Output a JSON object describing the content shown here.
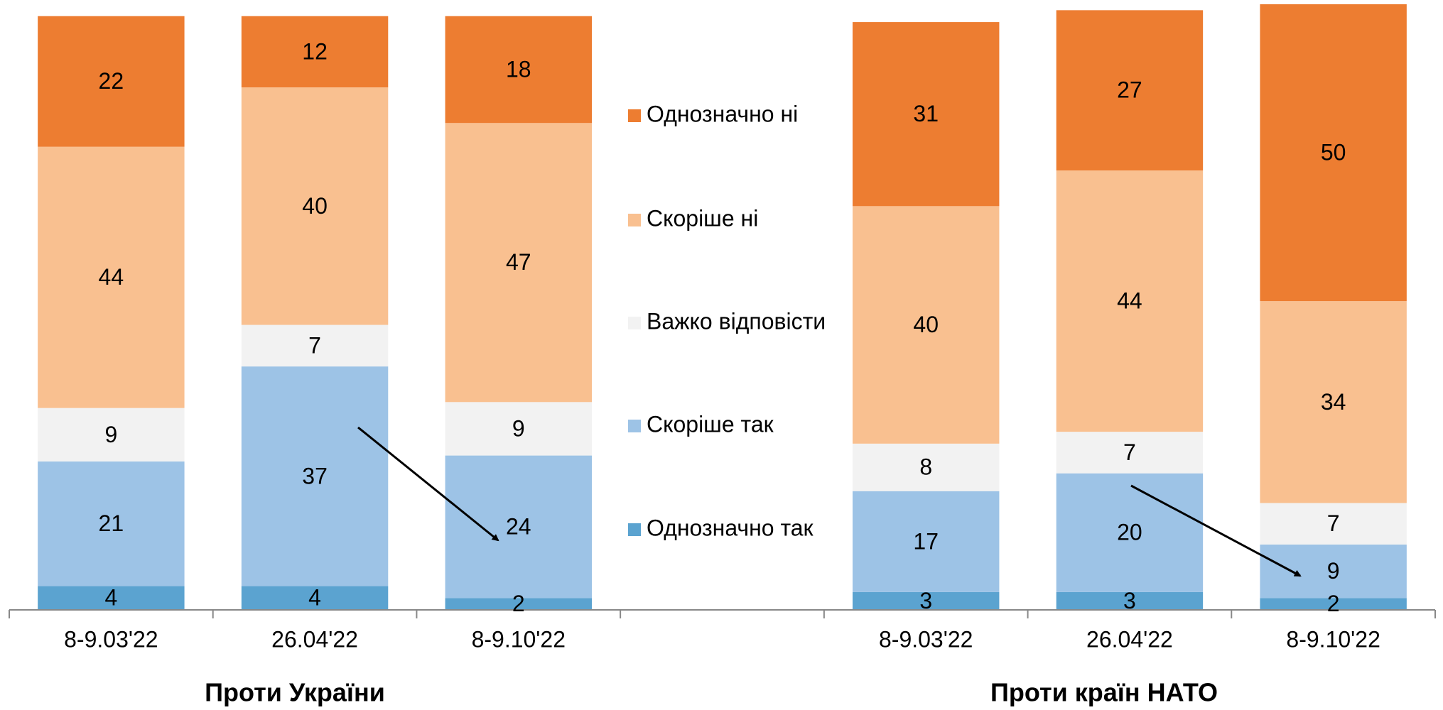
{
  "chart_data": {
    "type": "stacked_bar",
    "categories": [
      "8-9.03'22",
      "26.04'22",
      "8-9.10'22",
      null,
      "8-9.03'22",
      "26.04'22",
      "8-9.10'22"
    ],
    "group_labels": [
      "Проти України",
      "Проти країн НАТО"
    ],
    "series": [
      {
        "name": "Однозначно так",
        "color": "#5ba3d0",
        "values": [
          4,
          4,
          2,
          null,
          3,
          3,
          2
        ]
      },
      {
        "name": "Скоріше так",
        "color": "#9dc3e6",
        "values": [
          21,
          37,
          24,
          null,
          17,
          20,
          9
        ]
      },
      {
        "name": "Важко відповісти",
        "color": "#f2f2f2",
        "values": [
          9,
          7,
          9,
          null,
          8,
          7,
          7
        ]
      },
      {
        "name": "Скоріше ні",
        "color": "#f9c090",
        "values": [
          44,
          40,
          47,
          null,
          40,
          44,
          34
        ]
      },
      {
        "name": "Однозначно ні",
        "color": "#ed7d31",
        "values": [
          22,
          12,
          18,
          null,
          31,
          27,
          50
        ]
      }
    ],
    "ylim": [
      0,
      102
    ]
  }
}
